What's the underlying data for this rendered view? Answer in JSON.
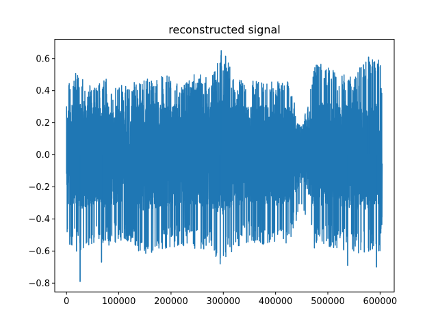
{
  "chart_data": {
    "type": "line",
    "title": "reconstructed signal",
    "xlabel": "",
    "ylabel": "",
    "xlim": [
      -22500,
      627000
    ],
    "ylim": [
      -0.855,
      0.72
    ],
    "x_ticks": [
      0,
      100000,
      200000,
      300000,
      400000,
      500000,
      600000
    ],
    "x_tick_labels": [
      "0",
      "100000",
      "200000",
      "300000",
      "400000",
      "500000",
      "600000"
    ],
    "y_ticks": [
      -0.8,
      -0.6,
      -0.4,
      -0.2,
      0.0,
      0.2,
      0.4,
      0.6
    ],
    "y_tick_labels": [
      "−0.8",
      "−0.6",
      "−0.4",
      "−0.2",
      "0.0",
      "0.2",
      "0.4",
      "0.6"
    ],
    "grid": false,
    "series": [
      {
        "color": "#1f77b4",
        "x_range": [
          0,
          604000
        ],
        "envelope": {
          "x": [
            0,
            25000,
            50000,
            75000,
            100000,
            125000,
            150000,
            175000,
            200000,
            225000,
            250000,
            275000,
            300000,
            325000,
            350000,
            375000,
            400000,
            425000,
            450000,
            475000,
            500000,
            525000,
            550000,
            575000,
            600000,
            604000
          ],
          "upper": [
            0.48,
            0.52,
            0.42,
            0.48,
            0.43,
            0.45,
            0.48,
            0.5,
            0.5,
            0.45,
            0.52,
            0.48,
            0.65,
            0.46,
            0.48,
            0.45,
            0.46,
            0.48,
            0.15,
            0.58,
            0.55,
            0.5,
            0.5,
            0.6,
            0.6,
            0.45
          ],
          "lower": [
            -0.55,
            -0.62,
            -0.58,
            -0.6,
            -0.55,
            -0.56,
            -0.64,
            -0.6,
            -0.58,
            -0.57,
            -0.6,
            -0.6,
            -0.68,
            -0.58,
            -0.55,
            -0.56,
            -0.58,
            -0.56,
            -0.32,
            -0.6,
            -0.58,
            -0.6,
            -0.62,
            -0.62,
            -0.6,
            -0.45
          ]
        },
        "extremes": [
          {
            "x": 26000,
            "y": -0.79
          },
          {
            "x": 67000,
            "y": -0.67
          },
          {
            "x": 294000,
            "y": -0.68
          },
          {
            "x": 296000,
            "y": 0.65
          },
          {
            "x": 538000,
            "y": -0.69
          },
          {
            "x": 593000,
            "y": -0.7
          },
          {
            "x": 578000,
            "y": 0.61
          }
        ]
      }
    ]
  }
}
